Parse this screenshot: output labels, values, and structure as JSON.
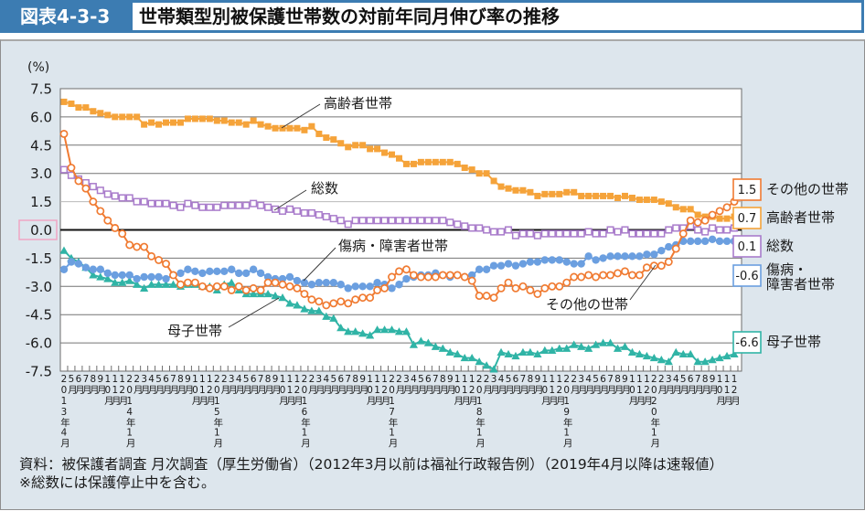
{
  "header": {
    "figure_number": "図表4-3-3",
    "title": "世帯類型別被保護世帯数の対前年同月伸び率の推移"
  },
  "chart_data": {
    "type": "line",
    "title": "世帯類型別被保護世帯数の対前年同月伸び率の推移",
    "xlabel": "",
    "ylabel": "(%)",
    "ylim": [
      -7.5,
      7.5
    ],
    "yticks": [
      "7.5",
      "6.0",
      "4.5",
      "3.0",
      "1.5",
      "0.0",
      "-1.5",
      "-3.0",
      "-4.5",
      "-6.0",
      "-7.5"
    ],
    "grid": true,
    "legend_placement": "right",
    "x": [
      "2013年4月",
      "5月",
      "6月",
      "7月",
      "8月",
      "9月",
      "10月",
      "11月",
      "12月",
      "2014年1月",
      "2月",
      "3月",
      "4月",
      "5月",
      "6月",
      "7月",
      "8月",
      "9月",
      "10月",
      "11月",
      "12月",
      "2015年1月",
      "2月",
      "3月",
      "4月",
      "5月",
      "6月",
      "7月",
      "8月",
      "9月",
      "10月",
      "11月",
      "12月",
      "2016年1月",
      "2月",
      "3月",
      "4月",
      "5月",
      "6月",
      "7月",
      "8月",
      "9月",
      "10月",
      "11月",
      "12月",
      "2017年1月",
      "2月",
      "3月",
      "4月",
      "5月",
      "6月",
      "7月",
      "8月",
      "9月",
      "10月",
      "11月",
      "12月",
      "2018年1月",
      "2月",
      "3月",
      "4月",
      "5月",
      "6月",
      "7月",
      "8月",
      "9月",
      "10月",
      "11月",
      "12月",
      "2019年1月",
      "2月",
      "3月",
      "4月",
      "5月",
      "6月",
      "7月",
      "8月",
      "9月",
      "10月",
      "11月",
      "12月",
      "2020年1月",
      "2月",
      "3月",
      "4月",
      "5月",
      "6月",
      "7月",
      "8月",
      "9月",
      "10月",
      "11月",
      "12月"
    ],
    "series": [
      {
        "key": "elderly",
        "name": "高齢者世帯",
        "color": "#f5a33a",
        "marker": "filled-square",
        "values": [
          6.8,
          6.7,
          6.5,
          6.5,
          6.3,
          6.2,
          6.1,
          6.0,
          6.0,
          6.0,
          6.0,
          5.6,
          5.7,
          5.6,
          5.7,
          5.7,
          5.7,
          5.9,
          5.9,
          5.9,
          5.9,
          5.8,
          5.8,
          5.7,
          5.7,
          5.6,
          5.8,
          5.6,
          5.5,
          5.4,
          5.4,
          5.4,
          5.4,
          5.3,
          5.5,
          5.1,
          4.9,
          4.8,
          4.6,
          4.4,
          4.5,
          4.5,
          4.3,
          4.3,
          4.1,
          4.0,
          3.8,
          3.5,
          3.5,
          3.6,
          3.6,
          3.6,
          3.6,
          3.6,
          3.5,
          3.3,
          3.2,
          3.0,
          3.0,
          2.6,
          2.3,
          2.2,
          2.1,
          2.1,
          2.0,
          1.8,
          1.9,
          1.9,
          1.9,
          2.0,
          2.0,
          1.8,
          1.8,
          1.8,
          1.8,
          1.8,
          1.7,
          1.8,
          1.7,
          1.6,
          1.6,
          1.6,
          1.5,
          1.4,
          1.2,
          1.1,
          1.1,
          0.8,
          0.7,
          0.7,
          0.6,
          0.6,
          0.7
        ]
      },
      {
        "key": "total",
        "name": "総数",
        "color": "#a97ccb",
        "marker": "open-square",
        "values": [
          3.2,
          2.9,
          2.7,
          2.5,
          2.3,
          2.1,
          1.9,
          1.8,
          1.7,
          1.7,
          1.5,
          1.5,
          1.4,
          1.4,
          1.4,
          1.3,
          1.2,
          1.4,
          1.3,
          1.2,
          1.2,
          1.2,
          1.3,
          1.3,
          1.3,
          1.3,
          1.4,
          1.3,
          1.2,
          1.1,
          1.0,
          1.1,
          1.0,
          0.9,
          0.9,
          0.8,
          0.7,
          0.6,
          0.5,
          0.3,
          0.5,
          0.5,
          0.5,
          0.5,
          0.5,
          0.5,
          0.5,
          0.5,
          0.5,
          0.5,
          0.5,
          0.5,
          0.5,
          0.4,
          0.3,
          0.2,
          0.1,
          0.1,
          0.0,
          -0.1,
          -0.1,
          0.0,
          -0.3,
          -0.2,
          -0.2,
          -0.3,
          -0.2,
          -0.2,
          -0.2,
          -0.2,
          -0.2,
          -0.2,
          -0.1,
          -0.2,
          -0.2,
          0.0,
          -0.1,
          0.0,
          -0.2,
          -0.2,
          -0.2,
          -0.2,
          -0.2,
          0.0,
          0.1,
          0.1,
          0.2,
          0.0,
          -0.1,
          0.1,
          0.0,
          0.0,
          0.1
        ]
      },
      {
        "key": "other",
        "name": "その他の世帯",
        "color": "#f07b32",
        "marker": "open-circle",
        "values": [
          5.1,
          3.3,
          2.6,
          2.2,
          1.5,
          1.0,
          0.5,
          0.1,
          -0.2,
          -0.8,
          -0.9,
          -0.9,
          -1.4,
          -1.6,
          -1.8,
          -2.4,
          -2.9,
          -2.8,
          -2.8,
          -3.0,
          -3.1,
          -3.0,
          -3.0,
          -3.2,
          -3.0,
          -3.2,
          -3.1,
          -3.2,
          -2.8,
          -2.8,
          -2.9,
          -3.0,
          -3.1,
          -3.4,
          -3.7,
          -3.8,
          -4.0,
          -3.9,
          -3.8,
          -3.9,
          -3.7,
          -3.6,
          -3.6,
          -3.2,
          -3.1,
          -2.5,
          -2.2,
          -2.1,
          -2.4,
          -2.5,
          -2.5,
          -2.5,
          -2.4,
          -2.4,
          -2.4,
          -2.5,
          -2.7,
          -3.5,
          -3.5,
          -3.6,
          -3.1,
          -2.8,
          -3.1,
          -3.0,
          -3.2,
          -3.4,
          -3.1,
          -3.0,
          -3.0,
          -2.8,
          -2.5,
          -2.5,
          -2.4,
          -2.5,
          -2.4,
          -2.4,
          -2.3,
          -2.2,
          -2.4,
          -2.4,
          -2.0,
          -1.9,
          -1.9,
          -1.7,
          -1.0,
          -0.2,
          0.5,
          0.4,
          0.5,
          0.8,
          1.0,
          1.2,
          1.5
        ]
      },
      {
        "key": "sick",
        "name": "傷病・障害者世帯",
        "color": "#6b9fe0",
        "marker": "filled-circle",
        "values": [
          -2.1,
          -1.7,
          -1.8,
          -2.0,
          -2.1,
          -2.1,
          -2.3,
          -2.4,
          -2.4,
          -2.4,
          -2.6,
          -2.5,
          -2.5,
          -2.5,
          -2.6,
          -2.4,
          -2.3,
          -2.1,
          -2.2,
          -2.3,
          -2.2,
          -2.2,
          -2.2,
          -2.1,
          -2.3,
          -2.3,
          -2.1,
          -2.3,
          -2.5,
          -2.6,
          -2.6,
          -2.5,
          -2.7,
          -2.8,
          -2.9,
          -2.8,
          -2.8,
          -2.8,
          -2.9,
          -3.1,
          -3.0,
          -3.0,
          -3.0,
          -2.8,
          -2.9,
          -3.1,
          -2.9,
          -2.6,
          -2.5,
          -2.4,
          -2.4,
          -2.3,
          -2.4,
          -2.5,
          -2.4,
          -2.5,
          -2.4,
          -2.1,
          -2.1,
          -1.9,
          -1.9,
          -1.8,
          -1.9,
          -1.8,
          -1.7,
          -1.7,
          -1.6,
          -1.6,
          -1.6,
          -1.7,
          -1.8,
          -1.8,
          -1.4,
          -1.6,
          -1.5,
          -1.4,
          -1.4,
          -1.4,
          -1.4,
          -1.4,
          -1.3,
          -1.3,
          -1.1,
          -0.9,
          -0.8,
          -0.6,
          -0.6,
          -0.6,
          -0.6,
          -0.5,
          -0.6,
          -0.6,
          -0.6
        ]
      },
      {
        "key": "mother",
        "name": "母子世帯",
        "color": "#30b4a6",
        "marker": "filled-triangle",
        "values": [
          -1.1,
          -1.5,
          -1.7,
          -2.0,
          -2.4,
          -2.5,
          -2.6,
          -2.8,
          -2.8,
          -2.7,
          -2.9,
          -3.1,
          -2.9,
          -2.9,
          -2.9,
          -2.9,
          -3.0,
          -2.9,
          -2.9,
          -3.0,
          -3.0,
          -3.2,
          -2.9,
          -2.8,
          -3.2,
          -3.4,
          -3.4,
          -3.4,
          -3.4,
          -3.5,
          -3.6,
          -3.9,
          -4.0,
          -4.2,
          -4.3,
          -4.3,
          -4.6,
          -4.7,
          -5.2,
          -5.4,
          -5.4,
          -5.5,
          -5.6,
          -5.3,
          -5.3,
          -5.3,
          -5.4,
          -5.4,
          -6.1,
          -5.9,
          -6.0,
          -6.2,
          -6.3,
          -6.5,
          -6.6,
          -6.8,
          -6.8,
          -7.0,
          -7.2,
          -7.4,
          -6.5,
          -6.6,
          -6.7,
          -6.5,
          -6.5,
          -6.6,
          -6.4,
          -6.4,
          -6.3,
          -6.3,
          -6.1,
          -6.2,
          -6.3,
          -6.1,
          -6.0,
          -6.0,
          -6.3,
          -6.2,
          -6.5,
          -6.6,
          -6.7,
          -6.8,
          -6.9,
          -7.0,
          -6.5,
          -6.6,
          -6.6,
          -7.0,
          -7.0,
          -6.9,
          -6.8,
          -6.7,
          -6.6
        ]
      }
    ],
    "annotations": [
      {
        "series": "elderly",
        "text": "高齢者世帯"
      },
      {
        "series": "total",
        "text": "総数"
      },
      {
        "series": "sick",
        "text": "傷病・障害者世帯"
      },
      {
        "series": "mother",
        "text": "母子世帯"
      },
      {
        "series": "other",
        "text": "その他の世帯"
      }
    ],
    "end_labels": [
      {
        "series": "other",
        "value": "1.5",
        "lines": [
          "その他の世帯"
        ]
      },
      {
        "series": "elderly",
        "value": "0.7",
        "lines": [
          "高齢者世帯"
        ]
      },
      {
        "series": "total",
        "value": "0.1",
        "lines": [
          "総数"
        ]
      },
      {
        "series": "sick",
        "value": "-0.6",
        "lines": [
          "傷病・",
          "障害者世帯"
        ]
      },
      {
        "series": "mother",
        "value": "-6.6",
        "lines": [
          "母子世帯"
        ]
      }
    ]
  },
  "notes": {
    "source": "資料：被保護者調査 月次調査（厚生労働省）（2012年3月以前は福祉行政報告例）（2019年4月以降は速報値）",
    "footnote": "※総数には保護停止中を含む。"
  }
}
